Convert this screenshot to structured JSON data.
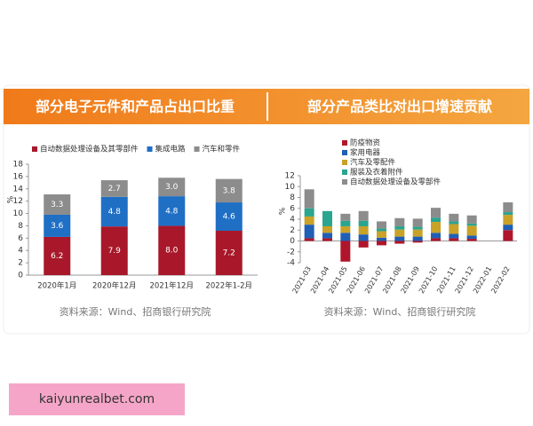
{
  "chart_data": [
    {
      "type": "stacked-bar",
      "title": "部分电子元件和产品占出口比重",
      "categories": [
        "2020年1月",
        "2020年12月",
        "2021年12月",
        "2022年1-2月"
      ],
      "series": [
        {
          "name": "自动数据处理设备及其零部件",
          "color": "#a8182a",
          "values": [
            6.2,
            7.9,
            8.0,
            7.2
          ],
          "value_labels": [
            "6.2",
            "7.9",
            "8.0",
            "7.2"
          ]
        },
        {
          "name": "集成电路",
          "color": "#1f6fc5",
          "values": [
            3.6,
            4.8,
            4.8,
            4.6
          ],
          "value_labels": [
            "3.6",
            "4.8",
            "4.8",
            "4.6"
          ]
        },
        {
          "name": "汽车和零件",
          "color": "#8c8c8c",
          "values": [
            3.3,
            2.7,
            3.0,
            3.8
          ],
          "value_labels": [
            "3.3",
            "2.7",
            "3.0",
            "3.8"
          ]
        }
      ],
      "ylabel": "%",
      "ylim": [
        0,
        18
      ],
      "yticks": [
        0,
        2,
        4,
        6,
        8,
        10,
        12,
        14,
        16,
        18
      ],
      "note": "资料来源：Wind、招商银行研究院"
    },
    {
      "type": "stacked-bar",
      "title": "部分产品类比对出口增速贡献",
      "categories": [
        "2021-03",
        "2021-04",
        "2021-05",
        "2021-06",
        "2021-07",
        "2021-08",
        "2021-09",
        "2021-10",
        "2021-11",
        "2021-12",
        "2022-01",
        "2022-02"
      ],
      "series": [
        {
          "name": "防疫物资",
          "color": "#b0162b",
          "values": [
            0.5,
            0.5,
            -3.8,
            -1.2,
            -0.8,
            -0.5,
            -0.3,
            0.5,
            0.5,
            0.4,
            null,
            2.0
          ]
        },
        {
          "name": "家用电器",
          "color": "#1f5fb5",
          "values": [
            2.5,
            1.0,
            1.5,
            1.2,
            0.6,
            0.8,
            0.8,
            1.0,
            0.8,
            0.6,
            null,
            1.0
          ]
        },
        {
          "name": "汽车及零配件",
          "color": "#c9a227",
          "values": [
            1.5,
            1.2,
            1.2,
            1.5,
            1.2,
            1.3,
            1.3,
            2.0,
            1.8,
            1.8,
            null,
            1.8
          ]
        },
        {
          "name": "服装及衣着附件",
          "color": "#2aa58f",
          "values": [
            1.5,
            2.8,
            1.0,
            1.0,
            0.5,
            0.6,
            0.5,
            0.8,
            0.5,
            0.4,
            null,
            0.5
          ]
        },
        {
          "name": "自动数据处理设备及零部件",
          "color": "#8c8c8c",
          "values": [
            3.5,
            0,
            1.3,
            1.8,
            1.3,
            1.5,
            1.5,
            1.8,
            1.4,
            1.5,
            null,
            1.8
          ]
        }
      ],
      "ylabel": "%",
      "ylim": [
        -4,
        12
      ],
      "yticks": [
        -4,
        -2,
        0,
        2,
        4,
        6,
        8,
        10,
        12
      ],
      "note": "资料来源：Wind、招商银行研究院"
    }
  ],
  "watermark": "kaiyunrealbet.com"
}
